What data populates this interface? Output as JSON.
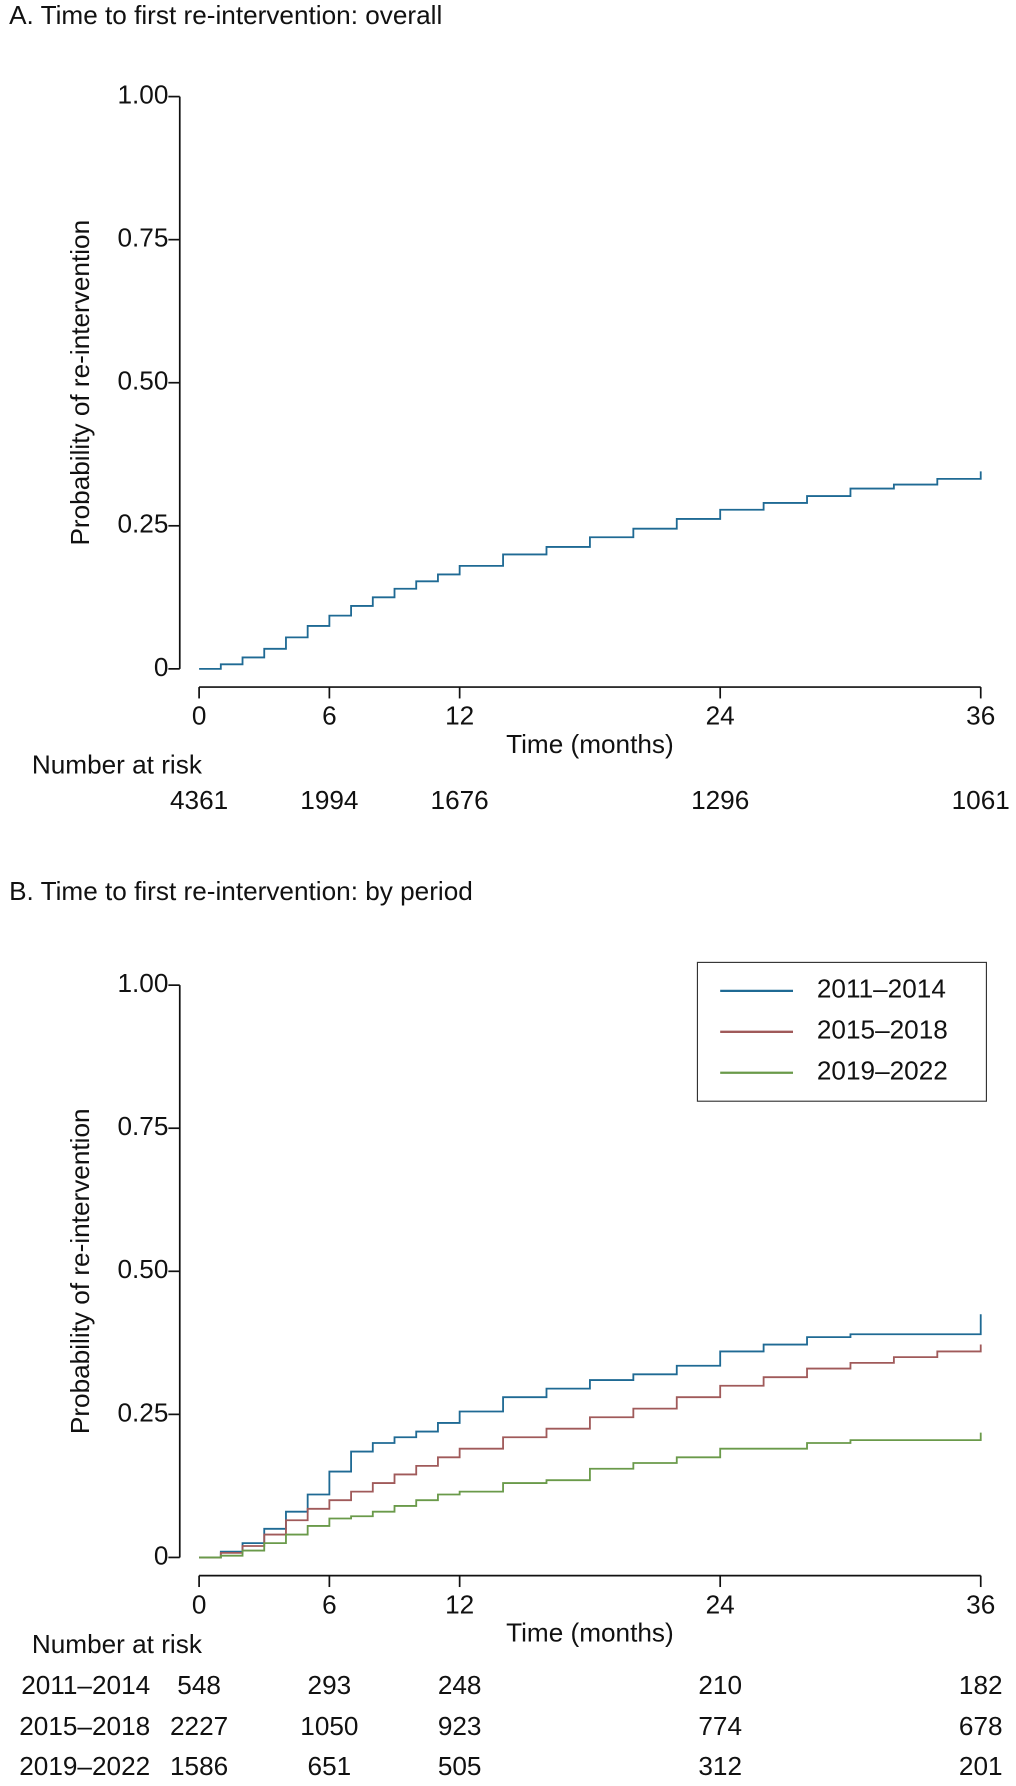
{
  "chart_data": [
    {
      "type": "line",
      "step": true,
      "title": "A. Time to first re-intervention: overall",
      "x_label": "Time (months)",
      "y_label": "Probability of re-intervention",
      "xlim": [
        0,
        36
      ],
      "xticks": [
        0,
        6,
        12,
        24,
        36
      ],
      "ylim": [
        0,
        1
      ],
      "yticks": [
        0,
        0.25,
        {
          "value": 0.5,
          "label": "0.50"
        },
        0.75,
        {
          "value": 1,
          "label": "1.00"
        }
      ],
      "x": [
        0,
        1,
        2,
        3,
        4,
        5,
        6,
        7,
        8,
        9,
        10,
        11,
        12,
        14,
        16,
        18,
        20,
        22,
        24,
        26,
        28,
        30,
        32,
        34,
        36
      ],
      "series": [
        {
          "color": "#1f6a94",
          "values": [
            0,
            0.008,
            0.02,
            0.035,
            0.055,
            0.075,
            0.093,
            0.11,
            0.125,
            0.14,
            0.153,
            0.165,
            0.18,
            0.2,
            0.213,
            0.23,
            0.245,
            0.262,
            0.278,
            0.29,
            0.302,
            0.315,
            0.322,
            0.332,
            0.345
          ]
        }
      ],
      "at_risk": {
        "label": "Number at risk",
        "rows": [
          {
            "values": [
              4361,
              1994,
              1676,
              1296,
              1061
            ]
          }
        ]
      }
    },
    {
      "type": "line",
      "step": true,
      "title": "B. Time to first re-intervention: by period",
      "x_label": "Time (months)",
      "y_label": "Probability of re-intervention",
      "xlim": [
        0,
        36
      ],
      "xticks": [
        0,
        6,
        12,
        24,
        36
      ],
      "ylim": [
        0,
        1
      ],
      "yticks": [
        0,
        0.25,
        {
          "value": 0.5,
          "label": "0.50"
        },
        0.75,
        {
          "value": 1,
          "label": "1.00"
        }
      ],
      "legend": "upper right",
      "x": [
        0,
        1,
        2,
        3,
        4,
        5,
        6,
        7,
        8,
        9,
        10,
        11,
        12,
        14,
        16,
        18,
        20,
        22,
        24,
        26,
        28,
        30,
        32,
        34,
        36
      ],
      "series": [
        {
          "name": "2011–2014",
          "color": "#1f6a94",
          "values": [
            0,
            0.01,
            0.025,
            0.05,
            0.08,
            0.11,
            0.15,
            0.185,
            0.2,
            0.21,
            0.22,
            0.235,
            0.255,
            0.28,
            0.295,
            0.31,
            0.32,
            0.335,
            0.36,
            0.372,
            0.385,
            0.39,
            0.39,
            0.39,
            0.425
          ]
        },
        {
          "name": "2015–2018",
          "color": "#a05a5a",
          "values": [
            0,
            0.008,
            0.02,
            0.04,
            0.065,
            0.085,
            0.1,
            0.115,
            0.13,
            0.145,
            0.16,
            0.175,
            0.19,
            0.21,
            0.225,
            0.245,
            0.26,
            0.28,
            0.3,
            0.315,
            0.33,
            0.34,
            0.35,
            0.36,
            0.372
          ]
        },
        {
          "name": "2019–2022",
          "color": "#6a9a4a",
          "values": [
            0,
            0.003,
            0.012,
            0.025,
            0.04,
            0.055,
            0.068,
            0.072,
            0.08,
            0.09,
            0.1,
            0.11,
            0.115,
            0.13,
            0.135,
            0.155,
            0.165,
            0.175,
            0.19,
            0.19,
            0.2,
            0.205,
            0.205,
            0.205,
            0.218
          ]
        }
      ],
      "at_risk": {
        "label": "Number at risk",
        "rows": [
          {
            "name": "2011–2014",
            "values": [
              548,
              293,
              248,
              210,
              182
            ]
          },
          {
            "name": "2015–2018",
            "values": [
              2227,
              1050,
              923,
              774,
              678
            ]
          },
          {
            "name": "2019–2022",
            "values": [
              1586,
              651,
              505,
              312,
              201
            ]
          }
        ]
      }
    }
  ]
}
